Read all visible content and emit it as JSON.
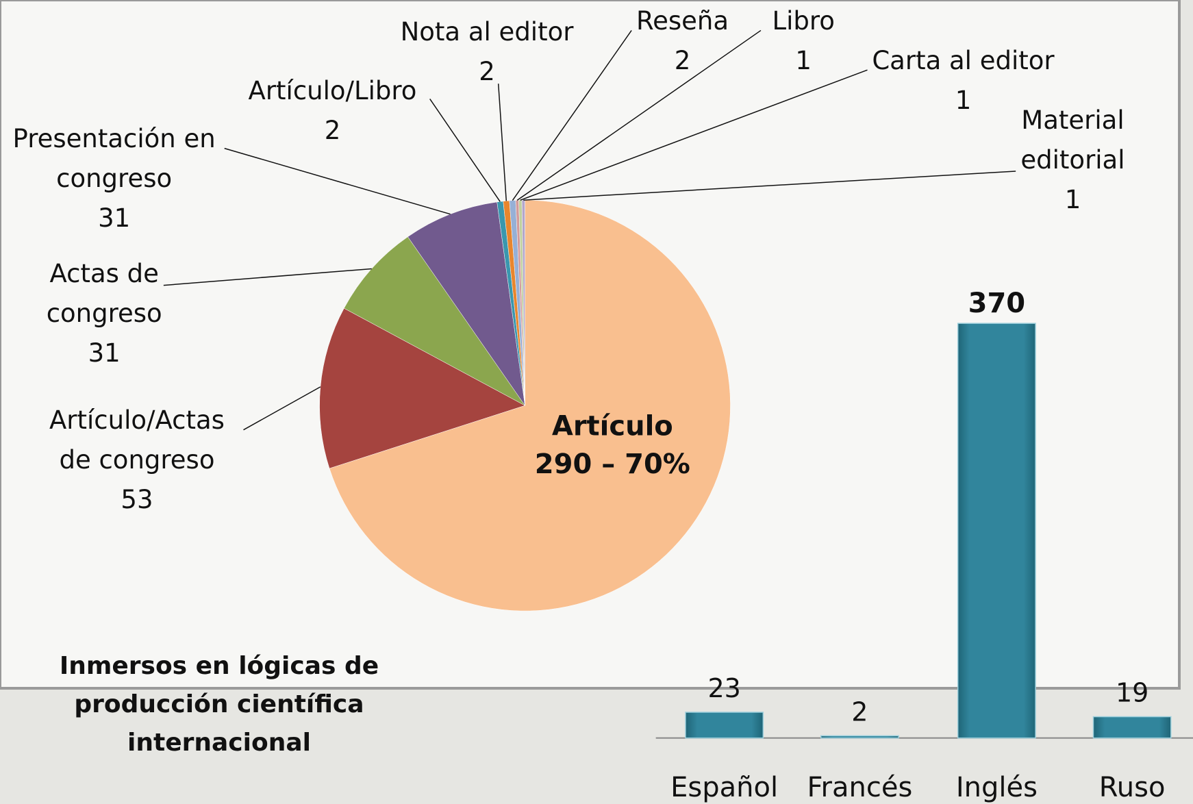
{
  "chart_data": [
    {
      "type": "pie",
      "categories": [
        "Artículo",
        "Artículo/Actas de  congreso",
        "Actas de congreso",
        "Presentación en congreso",
        "Artículo/Libro",
        "Nota al editor",
        "Reseña",
        "Libro",
        "Carta al editor",
        "Material editorial"
      ],
      "values": [
        290,
        53,
        31,
        31,
        2,
        2,
        2,
        1,
        1,
        1
      ],
      "value_labels": [
        "290 – 70%",
        "53",
        "31",
        "31",
        "2",
        "2",
        "2",
        "1",
        "1",
        "1"
      ],
      "colors": [
        "#f9bf8f",
        "#a5443f",
        "#8ba64e",
        "#715a8e",
        "#3a97ae",
        "#e8862e",
        "#96b0d6",
        "#d39b9b",
        "#c0d19e",
        "#b4a6ca"
      ]
    },
    {
      "type": "bar",
      "categories": [
        "Español",
        "Francés",
        "Inglés",
        "Ruso"
      ],
      "values": [
        23,
        2,
        370,
        19
      ],
      "color": "#31859c"
    }
  ],
  "caption": "Inmersos en lógicas de producción científica internacional"
}
